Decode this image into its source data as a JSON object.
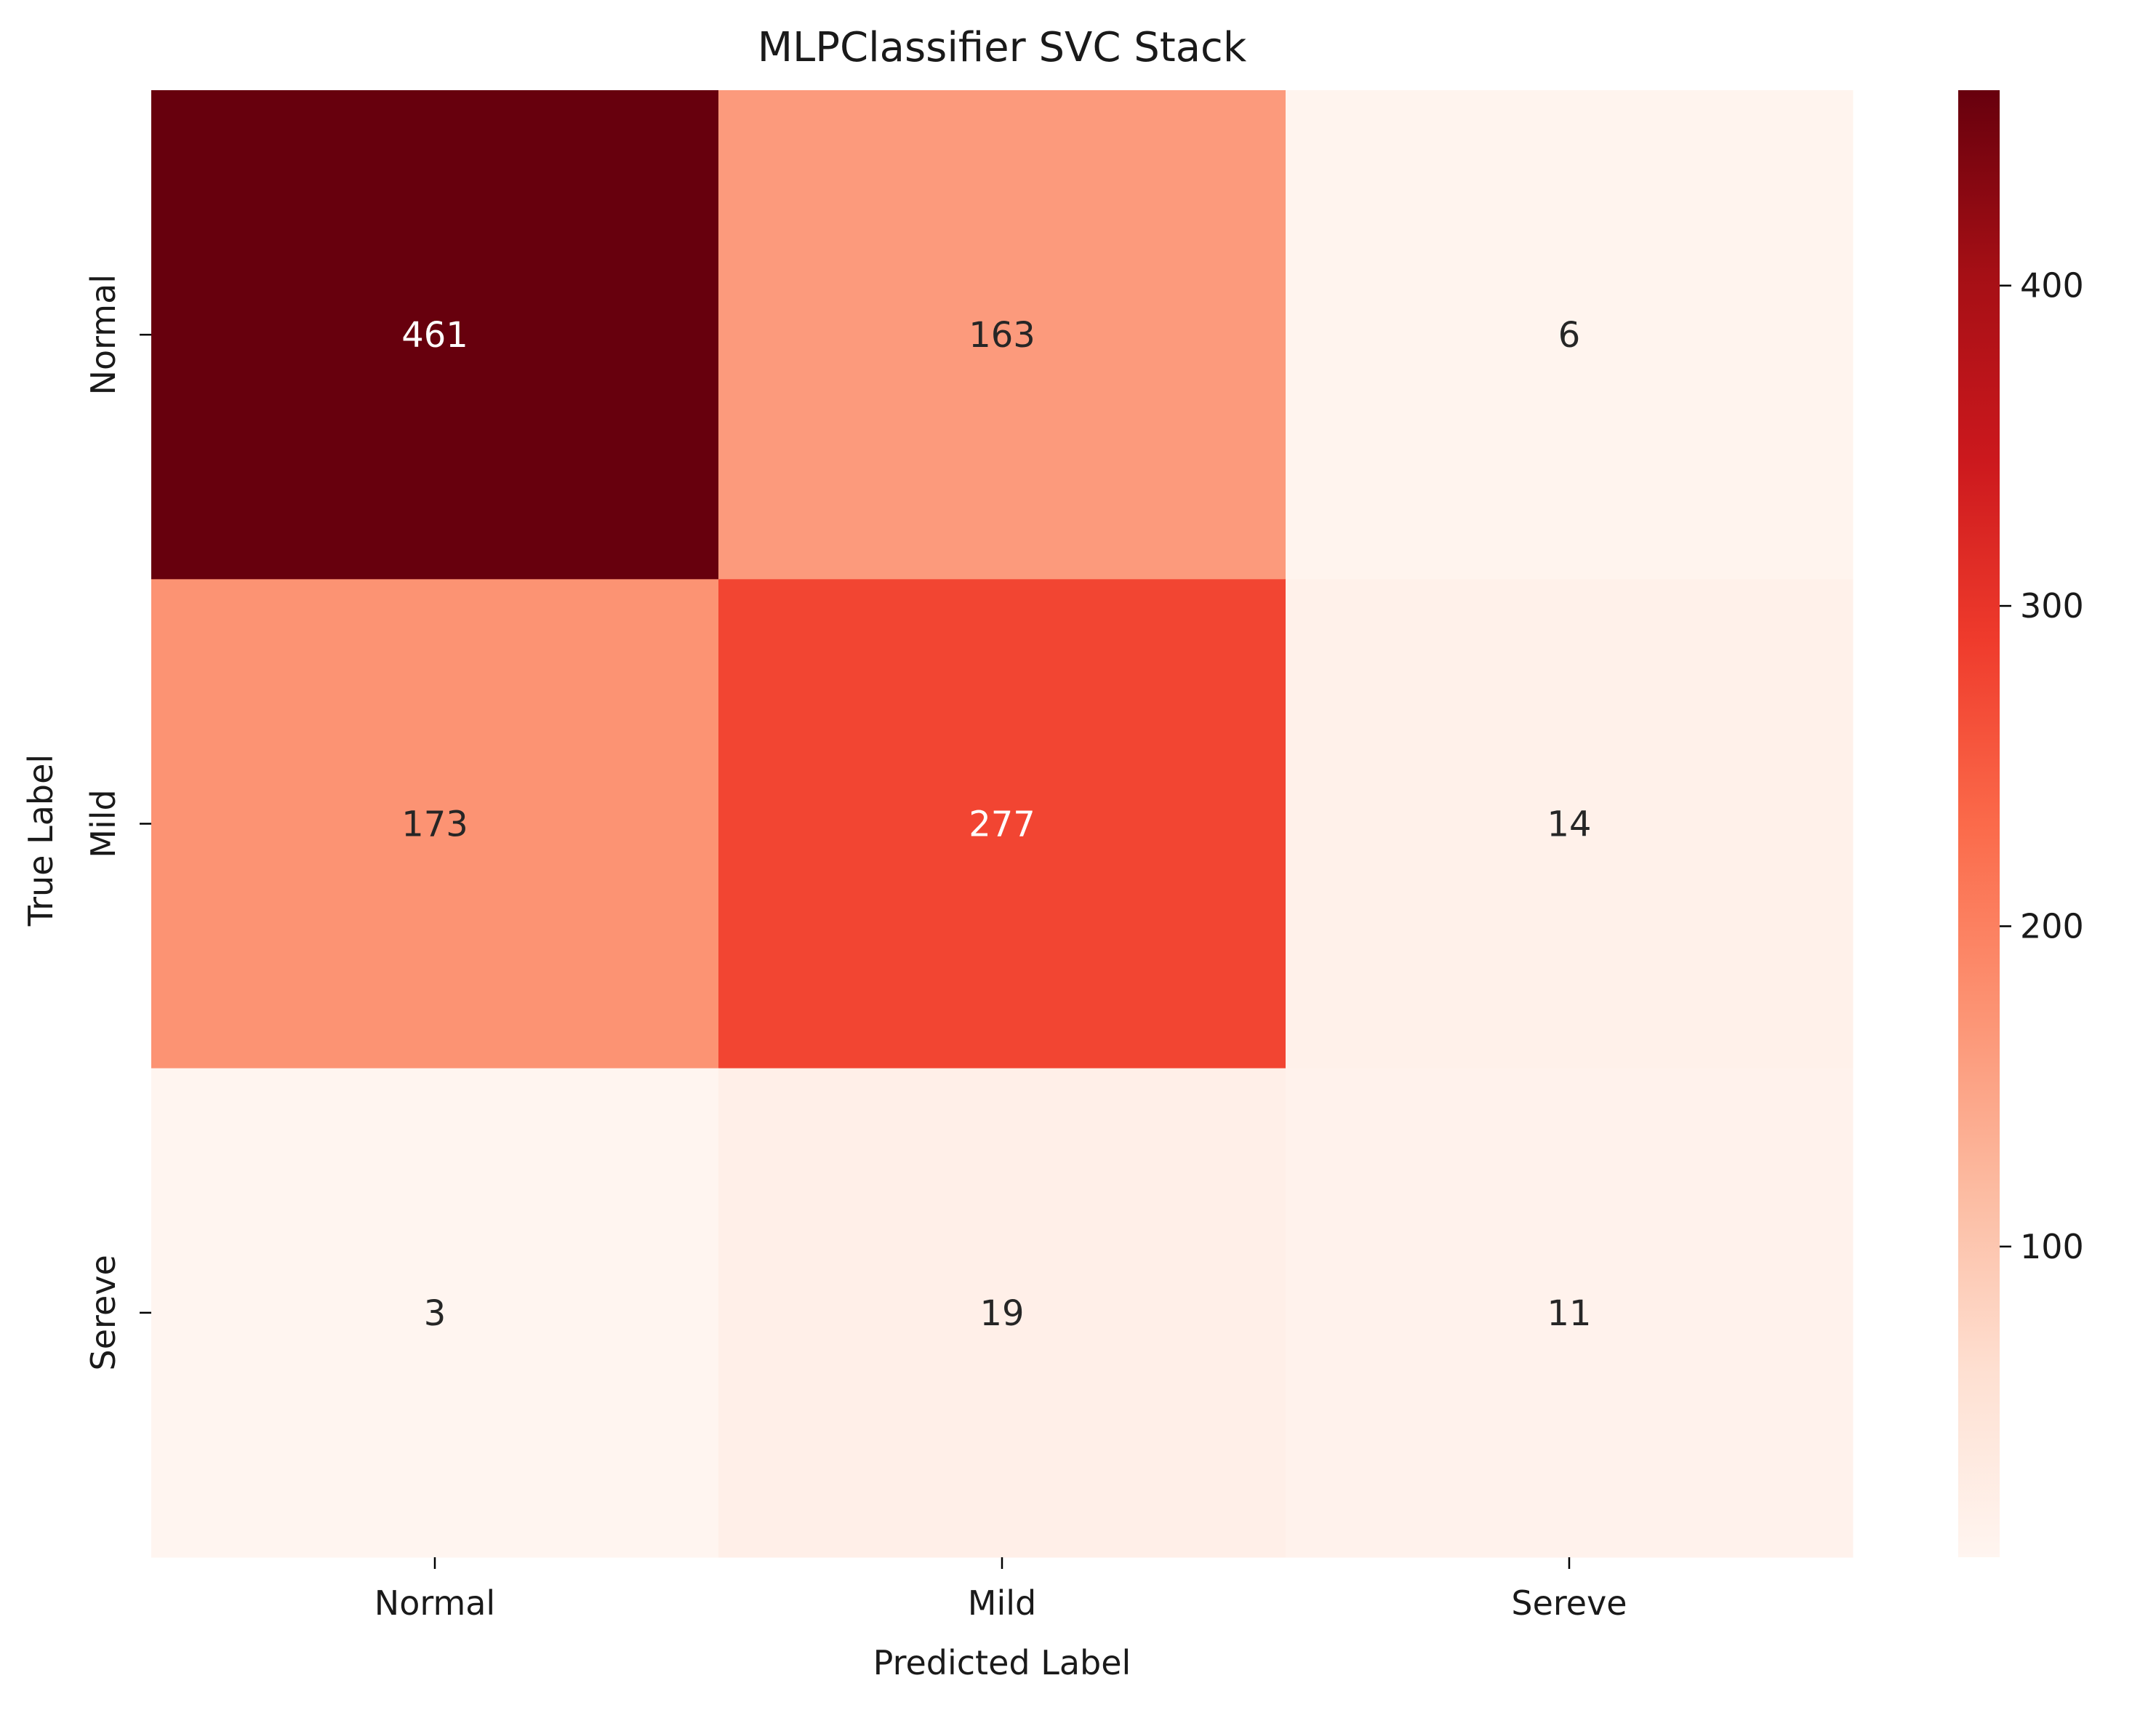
{
  "chart_data": {
    "type": "heatmap",
    "title": "MLPClassifier SVC Stack",
    "xlabel": "Predicted Label",
    "ylabel": "True Label",
    "x_categories": [
      "Normal",
      "Mild",
      "Sereve"
    ],
    "y_categories": [
      "Normal",
      "Mild",
      "Sereve"
    ],
    "values": [
      [
        461,
        163,
        6
      ],
      [
        173,
        277,
        14
      ],
      [
        3,
        19,
        11
      ]
    ],
    "colormap": "Reds",
    "colorbar": {
      "vmin": 3,
      "vmax": 461,
      "ticks": [
        100,
        200,
        300,
        400
      ],
      "tick_labels": [
        "100",
        "200",
        "300",
        "400"
      ]
    },
    "grid": false
  }
}
